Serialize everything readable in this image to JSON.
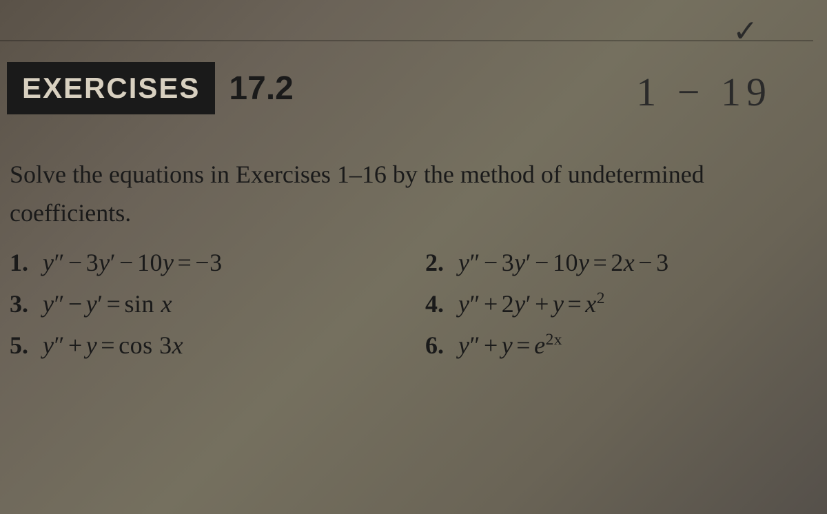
{
  "colors": {
    "page_bg_start": "#5a5248",
    "page_bg_mid": "#75705f",
    "page_bg_end": "#55504a",
    "label_bg": "#1a1a1a",
    "label_fg": "#d8d0c0",
    "text": "#1a1a1a",
    "handwritten": "#2a2a2a"
  },
  "typography": {
    "body_family": "Georgia, Times New Roman, serif",
    "label_family": "Arial, sans-serif",
    "handwritten_family": "Comic Sans MS, cursive",
    "instruction_fontsize": 36,
    "label_fontsize": 42,
    "section_fontsize": 48,
    "problem_fontsize": 36,
    "handwritten_fontsize": 58
  },
  "header": {
    "label": "EXERCISES",
    "section_number": "17.2"
  },
  "handwritten": {
    "top_mark": "✓",
    "annotation": "1 − 19"
  },
  "instruction": "Solve the equations in Exercises 1–16 by the method of undetermined coefficients.",
  "problems": [
    {
      "num": "1.",
      "eq": "y″ − 3y′ − 10y = −3",
      "col": "left"
    },
    {
      "num": "2.",
      "eq": "y″ − 3y′ − 10y = 2x − 3",
      "col": "right"
    },
    {
      "num": "3.",
      "eq": "y″ − y′ = sin x",
      "col": "left"
    },
    {
      "num": "4.",
      "eq": "y″ + 2y′ + y = x²",
      "col": "right"
    },
    {
      "num": "5.",
      "eq": "y″ + y = cos 3x",
      "col": "left"
    },
    {
      "num": "6.",
      "eq": "y″ + y = e²ˣ",
      "col": "right"
    }
  ]
}
